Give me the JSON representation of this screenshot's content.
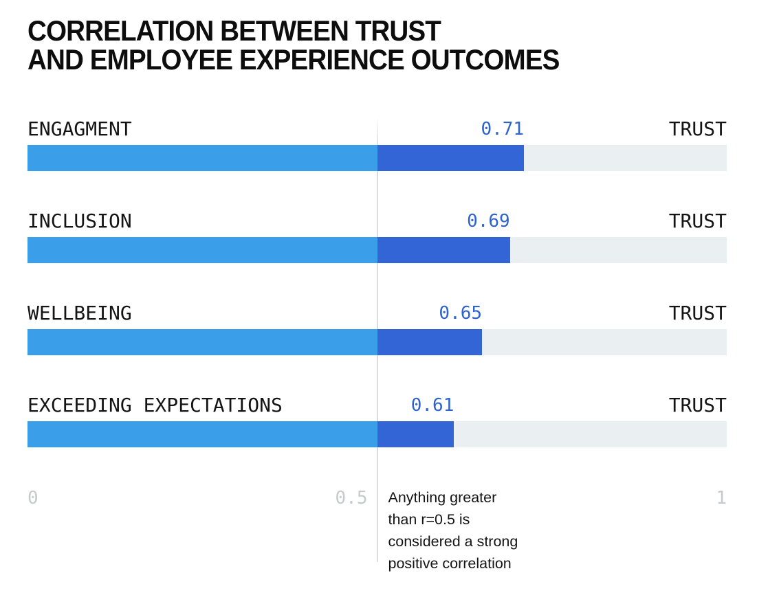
{
  "title": {
    "line1": "CORRELATION BETWEEN TRUST",
    "line2": "AND EMPLOYEE EXPERIENCE OUTCOMES"
  },
  "chart_data": {
    "type": "bar",
    "orientation": "horizontal",
    "title": "CORRELATION BETWEEN TRUST AND EMPLOYEE EXPERIENCE OUTCOMES",
    "categories": [
      "ENGAGMENT",
      "INCLUSION",
      "WELLBEING",
      "EXCEEDING EXPECTATIONS"
    ],
    "values": [
      0.71,
      0.69,
      0.65,
      0.61
    ],
    "series_label": "TRUST",
    "xlim": [
      0,
      1
    ],
    "x_ticks": [
      "0",
      "0.5",
      "1"
    ],
    "threshold": 0.5,
    "grid": "off",
    "annotation": "Anything greater\nthan r=0.5 is\nconsidered a strong\npositive correlation",
    "colors": {
      "bar_below_threshold": "#3b9ee9",
      "bar_above_threshold": "#3465d6",
      "track": "#eaf0f2",
      "value_text": "#2d62cf",
      "tick_text": "#c5cacd",
      "threshold_line": "#d9dde0"
    }
  }
}
